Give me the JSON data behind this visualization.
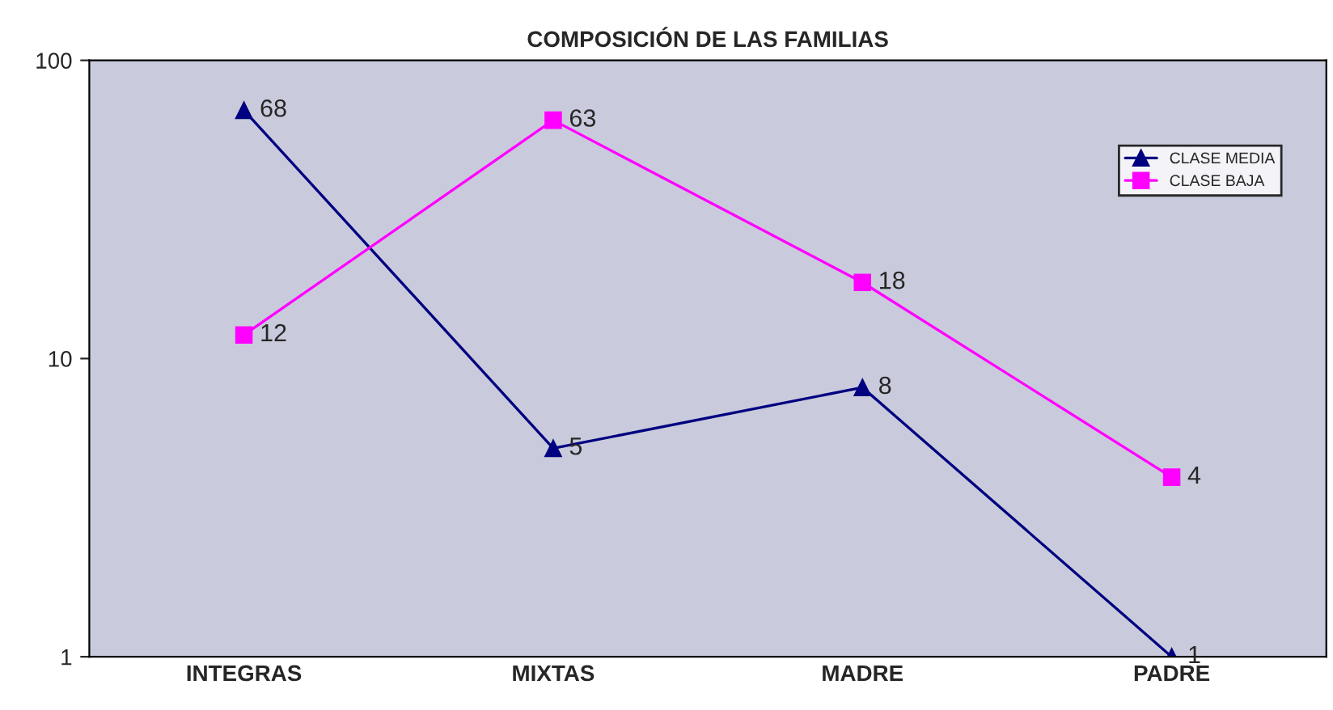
{
  "chart_data": {
    "type": "line",
    "title": "COMPOSICIÓN DE LAS FAMILIAS",
    "categories": [
      "INTEGRAS",
      "MIXTAS",
      "MADRE",
      "PADRE"
    ],
    "series": [
      {
        "name": "CLASE MEDIA",
        "color": "#000080",
        "marker": "triangle",
        "values": [
          68,
          5,
          8,
          1
        ]
      },
      {
        "name": "CLASE BAJA",
        "color": "#ff00ff",
        "marker": "square",
        "values": [
          12,
          63,
          18,
          4
        ]
      }
    ],
    "log": true,
    "ylim": [
      1,
      100
    ],
    "yticks": [
      1,
      10,
      100
    ],
    "grid": false,
    "legend": "top right",
    "data_labels": true,
    "line_style": "solid"
  }
}
